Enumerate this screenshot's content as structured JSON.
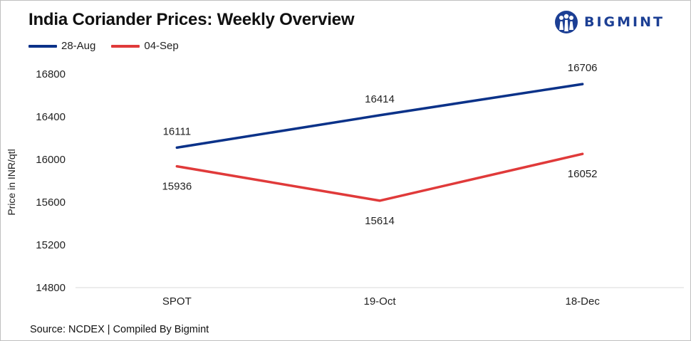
{
  "header": {
    "title": "India Coriander Prices: Weekly Overview",
    "brand": "BIGMINT"
  },
  "footer": {
    "source": "Source: NCDEX | Compiled By Bigmint"
  },
  "colors": {
    "series_28_aug": "#0b3289",
    "series_04_sep": "#e03a3a",
    "brand": "#1c3f94",
    "grid": "#d9d9d9"
  },
  "icons": {
    "logo": "bigmint-people-logo-icon"
  },
  "chart_data": {
    "type": "line",
    "title": "India Coriander Prices: Weekly Overview",
    "xlabel": "",
    "ylabel": "Price in INR/qtl",
    "categories": [
      "SPOT",
      "19-Oct",
      "18-Dec"
    ],
    "series": [
      {
        "name": "28-Aug",
        "values": [
          16111,
          16414,
          16706
        ]
      },
      {
        "name": "04-Sep",
        "values": [
          15936,
          15614,
          16052
        ]
      }
    ],
    "ylim": [
      14800,
      16800
    ],
    "yticks": [
      "16800",
      "16400",
      "16000",
      "15600",
      "15200",
      "14800"
    ],
    "grid": "horizontal baseline only",
    "legend_position": "top-left",
    "data_labels": true
  }
}
